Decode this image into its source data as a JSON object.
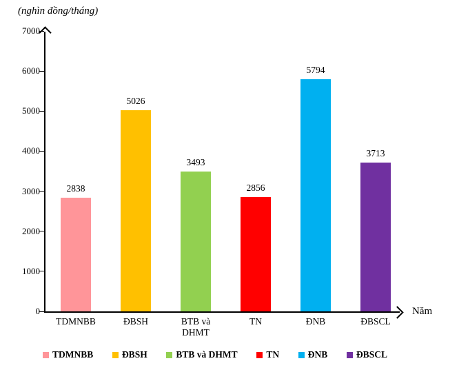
{
  "chart_title": "(nghìn đồng/tháng)",
  "x_axis_title": "Năm",
  "chart_data": {
    "type": "bar",
    "title": "(nghìn đồng/tháng)",
    "xlabel": "Năm",
    "ylabel": "(nghìn đồng/tháng)",
    "categories": [
      "TDMNBB",
      "ĐBSH",
      "BTB và DHMT",
      "TN",
      "ĐNB",
      "ĐBSCL"
    ],
    "values": [
      2838,
      5026,
      3493,
      2856,
      5794,
      3713
    ],
    "colors": [
      "#FF9599",
      "#FFC000",
      "#92D050",
      "#FF0000",
      "#00B0F0",
      "#7030A0"
    ],
    "ylim": [
      0,
      7000
    ],
    "yticks": [
      0,
      1000,
      2000,
      3000,
      4000,
      5000,
      6000,
      7000
    ],
    "grid": false,
    "legend_position": "bottom",
    "legend": [
      {
        "label": "TDMNBB",
        "color": "#FF9599"
      },
      {
        "label": "ĐBSH",
        "color": "#FFC000"
      },
      {
        "label": "BTB và DHMT",
        "color": "#92D050"
      },
      {
        "label": "TN",
        "color": "#FF0000"
      },
      {
        "label": "ĐNB",
        "color": "#00B0F0"
      },
      {
        "label": "ĐBSCL",
        "color": "#7030A0"
      }
    ]
  }
}
